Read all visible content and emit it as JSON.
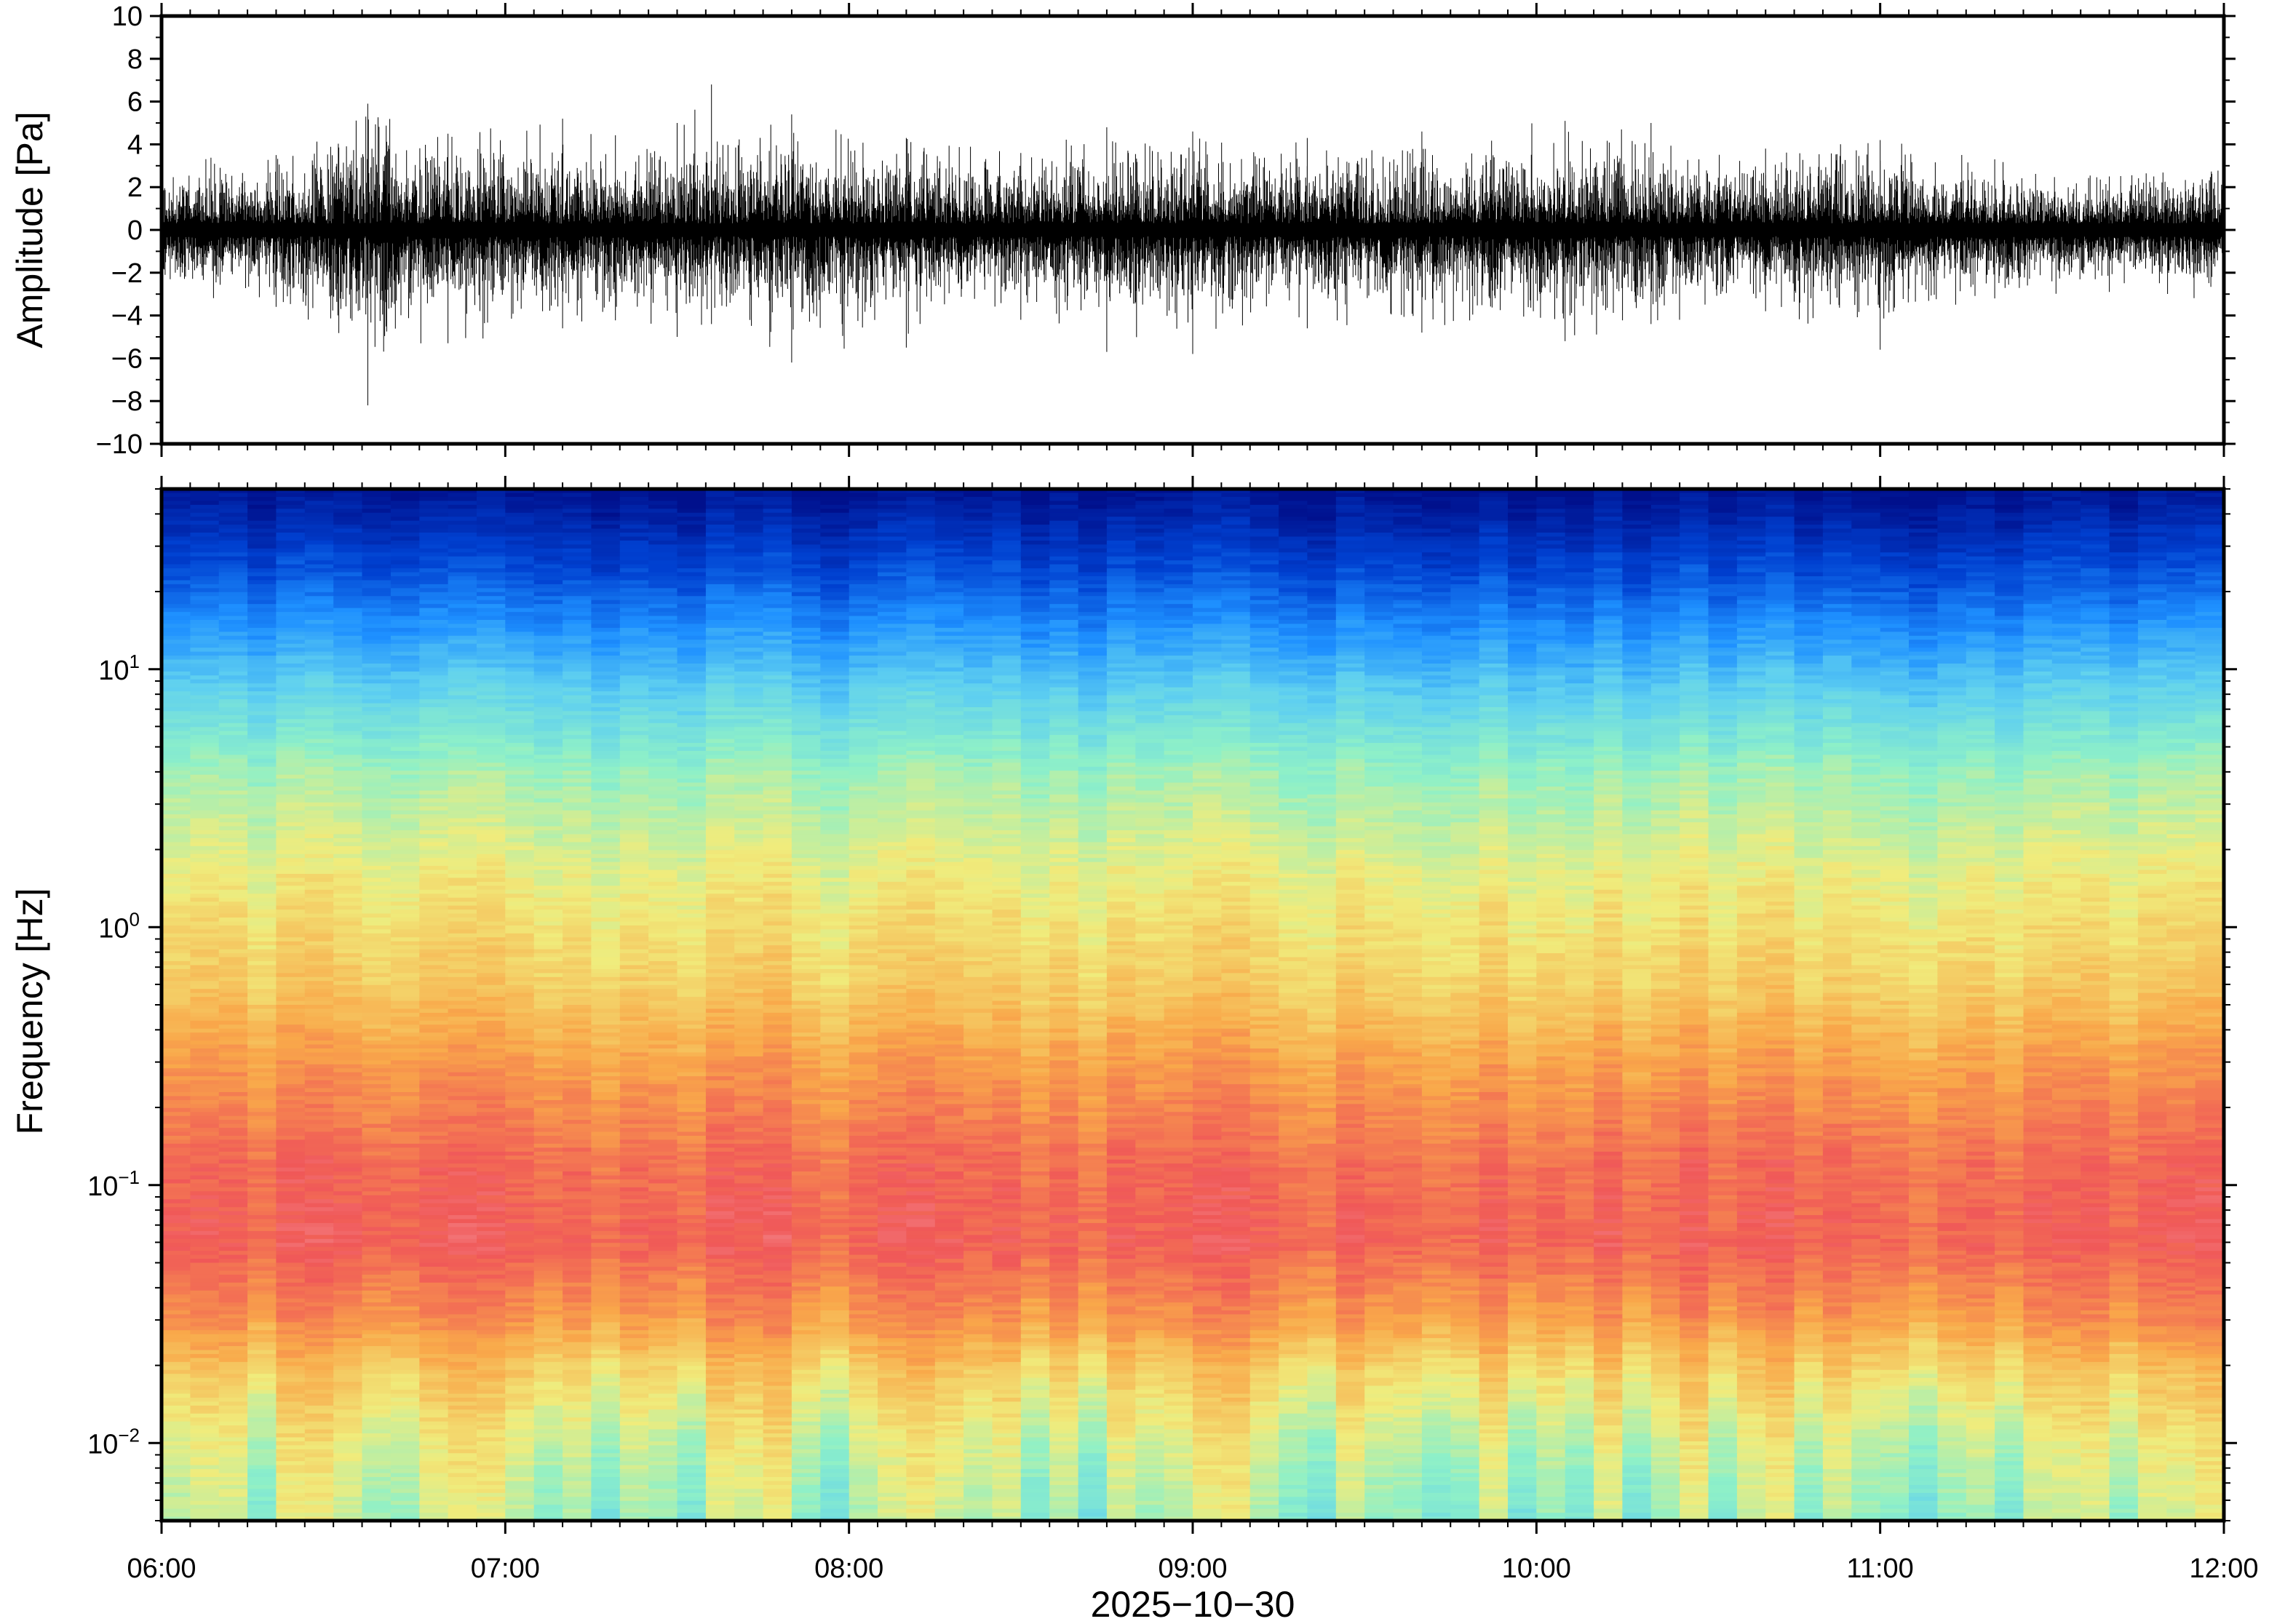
{
  "chart_data": [
    {
      "type": "line",
      "panel": "waveform",
      "ylabel": "Amplitude [Pa]",
      "ylim": [
        -10,
        10
      ],
      "yticks": [
        {
          "value": 10,
          "label": "10"
        },
        {
          "value": 8,
          "label": "8"
        },
        {
          "value": 6,
          "label": "6"
        },
        {
          "value": 4,
          "label": "4"
        },
        {
          "value": 2,
          "label": "2"
        },
        {
          "value": 0,
          "label": "0"
        },
        {
          "value": -2,
          "label": "−2"
        },
        {
          "value": -4,
          "label": "−4"
        },
        {
          "value": -6,
          "label": "−6"
        },
        {
          "value": -8,
          "label": "−8"
        },
        {
          "value": -10,
          "label": "−10"
        }
      ],
      "xlim": [
        "06:00",
        "12:00"
      ],
      "color": "#000000",
      "envelope": [
        {
          "x": "06:00",
          "max": 3.8,
          "min": -3.5
        },
        {
          "x": "06:20",
          "max": 3.5,
          "min": -3.6
        },
        {
          "x": "06:36",
          "max": 5.9,
          "min": -8.2
        },
        {
          "x": "06:50",
          "max": 4.5,
          "min": -5.3
        },
        {
          "x": "07:10",
          "max": 5.2,
          "min": -4.6
        },
        {
          "x": "07:30",
          "max": 5.0,
          "min": -5.0
        },
        {
          "x": "07:36",
          "max": 6.8,
          "min": -4.4
        },
        {
          "x": "07:50",
          "max": 5.4,
          "min": -6.2
        },
        {
          "x": "08:10",
          "max": 4.3,
          "min": -5.5
        },
        {
          "x": "08:30",
          "max": 3.6,
          "min": -4.2
        },
        {
          "x": "08:45",
          "max": 4.8,
          "min": -5.7
        },
        {
          "x": "09:00",
          "max": 4.6,
          "min": -5.8
        },
        {
          "x": "09:20",
          "max": 4.3,
          "min": -4.6
        },
        {
          "x": "09:40",
          "max": 4.6,
          "min": -4.8
        },
        {
          "x": "10:05",
          "max": 5.1,
          "min": -5.2
        },
        {
          "x": "10:20",
          "max": 5.0,
          "min": -4.4
        },
        {
          "x": "10:40",
          "max": 3.8,
          "min": -3.8
        },
        {
          "x": "11:00",
          "max": 4.2,
          "min": -5.6
        },
        {
          "x": "11:20",
          "max": 3.3,
          "min": -3.2
        },
        {
          "x": "11:40",
          "max": 2.5,
          "min": -2.9
        },
        {
          "x": "12:00",
          "max": 3.0,
          "min": -4.0
        }
      ]
    },
    {
      "type": "heatmap",
      "panel": "spectrogram",
      "ylabel": "Frequency [Hz]",
      "yscale": "log",
      "ylim": [
        0.005,
        50
      ],
      "yticks": [
        {
          "value": 10,
          "base": "10",
          "exp": "1"
        },
        {
          "value": 1,
          "base": "10",
          "exp": "0"
        },
        {
          "value": 0.1,
          "base": "10",
          "exp": "−1"
        },
        {
          "value": 0.01,
          "base": "10",
          "exp": "−2"
        }
      ],
      "xlim": [
        "06:00",
        "12:00"
      ],
      "xticks": [
        "06:00",
        "07:00",
        "08:00",
        "09:00",
        "10:00",
        "11:00",
        "12:00"
      ],
      "xlabel": "2025−10−30",
      "colormap_stops": [
        "#00108c",
        "#0040d0",
        "#1e90ff",
        "#5fd0f0",
        "#8ef0c8",
        "#f0ec7c",
        "#f9a84a",
        "#f05858",
        "#f8b8c0"
      ],
      "frequency_profile": [
        {
          "freq_hz": 50,
          "level": 0.0
        },
        {
          "freq_hz": 35,
          "level": 0.07
        },
        {
          "freq_hz": 22,
          "level": 0.16
        },
        {
          "freq_hz": 14,
          "level": 0.26
        },
        {
          "freq_hz": 8,
          "level": 0.38
        },
        {
          "freq_hz": 4,
          "level": 0.52
        },
        {
          "freq_hz": 1.5,
          "level": 0.62
        },
        {
          "freq_hz": 0.6,
          "level": 0.68
        },
        {
          "freq_hz": 0.3,
          "level": 0.76
        },
        {
          "freq_hz": 0.12,
          "level": 0.84
        },
        {
          "freq_hz": 0.06,
          "level": 0.86
        },
        {
          "freq_hz": 0.03,
          "level": 0.77
        },
        {
          "freq_hz": 0.018,
          "level": 0.66
        },
        {
          "freq_hz": 0.01,
          "level": 0.58
        },
        {
          "freq_hz": 0.005,
          "level": 0.52
        }
      ]
    }
  ]
}
